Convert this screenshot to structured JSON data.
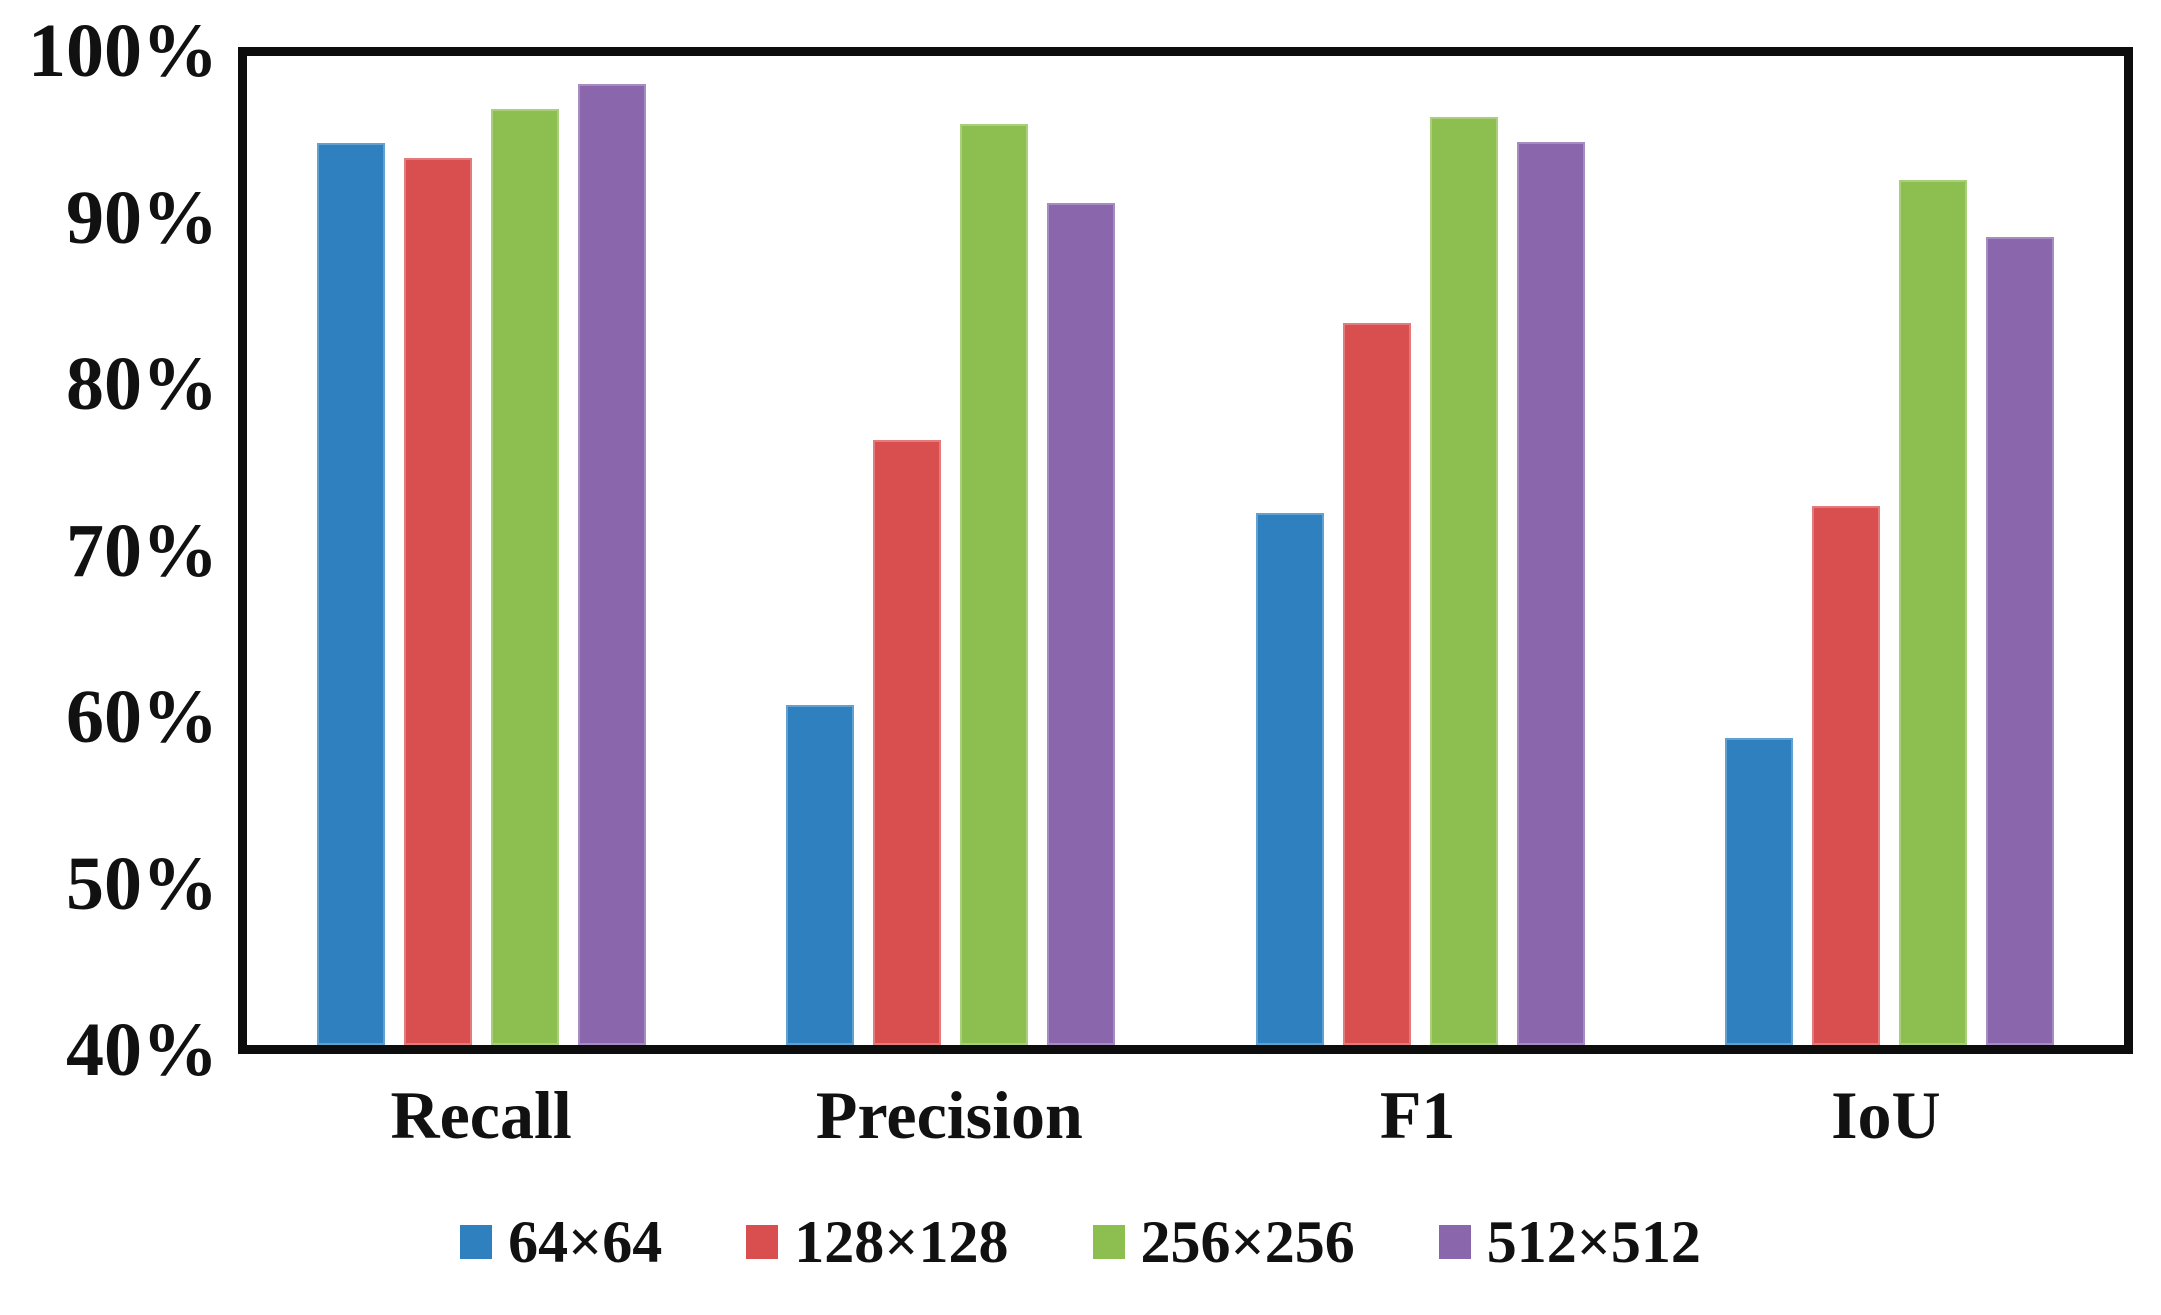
{
  "chart_data": {
    "type": "bar",
    "title": "",
    "xlabel": "",
    "ylabel": "",
    "ylim": [
      40,
      100
    ],
    "y_tick_labels": [
      "100%",
      "90%",
      "80%",
      "70%",
      "60%",
      "50%",
      "40%"
    ],
    "y_tick_values": [
      100,
      90,
      80,
      70,
      60,
      50,
      40
    ],
    "grid": "off",
    "legend_position": "bottom",
    "categories": [
      "Recall",
      "Precision",
      "F1",
      "IoU"
    ],
    "series": [
      {
        "name": "64×64",
        "color": "#2E80BF",
        "values": [
          94.7,
          60.6,
          72.3,
          58.6
        ]
      },
      {
        "name": "128×128",
        "color": "#D94F4F",
        "values": [
          93.8,
          76.7,
          83.8,
          72.7
        ]
      },
      {
        "name": "256×256",
        "color": "#8DBF50",
        "values": [
          96.8,
          95.9,
          96.3,
          92.5
        ]
      },
      {
        "name": "512×512",
        "color": "#8A66AD",
        "values": [
          98.3,
          91.1,
          94.8,
          89.0
        ]
      }
    ],
    "axis_color": "#0d0d0d",
    "text_color": "#111111"
  }
}
